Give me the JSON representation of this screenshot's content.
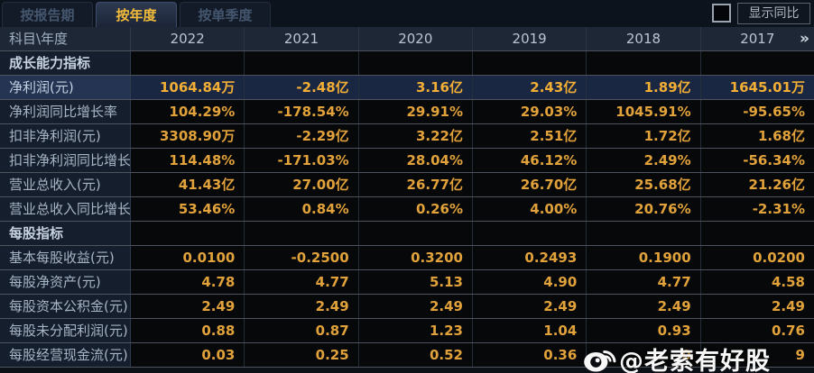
{
  "tabs": [
    {
      "label": "按报告期",
      "active": false
    },
    {
      "label": "按年度",
      "active": true
    },
    {
      "label": "按单季度",
      "active": false
    }
  ],
  "controls": {
    "show_yoy_label": "显示同比",
    "checkbox_checked": false
  },
  "table": {
    "corner_label": "科目\\年度",
    "years": [
      "2022",
      "2021",
      "2020",
      "2019",
      "2018",
      "2017"
    ],
    "more_icon": "»",
    "rows": [
      {
        "type": "section",
        "label": "成长能力指标",
        "values": [
          "",
          "",
          "",
          "",
          "",
          ""
        ]
      },
      {
        "type": "data",
        "highlight": true,
        "label": "净利润(元)",
        "values": [
          "1064.84万",
          "-2.48亿",
          "3.16亿",
          "2.43亿",
          "1.89亿",
          "1645.01万"
        ]
      },
      {
        "type": "data",
        "label": "净利润同比增长率",
        "values": [
          "104.29%",
          "-178.54%",
          "29.91%",
          "29.03%",
          "1045.91%",
          "-95.65%"
        ]
      },
      {
        "type": "data",
        "label": "扣非净利润(元)",
        "values": [
          "3308.90万",
          "-2.29亿",
          "3.22亿",
          "2.51亿",
          "1.72亿",
          "1.68亿"
        ]
      },
      {
        "type": "data",
        "label": "扣非净利润同比增长率",
        "values": [
          "114.48%",
          "-171.03%",
          "28.04%",
          "46.12%",
          "2.49%",
          "-56.34%"
        ]
      },
      {
        "type": "data",
        "label": "营业总收入(元)",
        "values": [
          "41.43亿",
          "27.00亿",
          "26.77亿",
          "26.70亿",
          "25.68亿",
          "21.26亿"
        ]
      },
      {
        "type": "data",
        "label": "营业总收入同比增长率",
        "values": [
          "53.46%",
          "0.84%",
          "0.26%",
          "4.00%",
          "20.76%",
          "-2.31%"
        ]
      },
      {
        "type": "section",
        "label": "每股指标",
        "values": [
          "",
          "",
          "",
          "",
          "",
          ""
        ]
      },
      {
        "type": "data",
        "label": "基本每股收益(元)",
        "values": [
          "0.0100",
          "-0.2500",
          "0.3200",
          "0.2493",
          "0.1900",
          "0.0200"
        ]
      },
      {
        "type": "data",
        "label": "每股净资产(元)",
        "values": [
          "4.78",
          "4.77",
          "5.13",
          "4.90",
          "4.77",
          "4.58"
        ]
      },
      {
        "type": "data",
        "label": "每股资本公积金(元)",
        "values": [
          "2.49",
          "2.49",
          "2.49",
          "2.49",
          "2.49",
          "2.49"
        ]
      },
      {
        "type": "data",
        "label": "每股未分配利润(元)",
        "values": [
          "0.88",
          "0.87",
          "1.23",
          "1.04",
          "0.93",
          "0.76"
        ]
      },
      {
        "type": "data",
        "label": "每股经营现金流(元)",
        "values": [
          "0.03",
          "0.25",
          "0.52",
          "0.36",
          "0",
          "9"
        ]
      }
    ]
  },
  "watermark": {
    "text": "@老索有好股",
    "icon": "weibo-icon"
  },
  "colors": {
    "value_gold": "#e2a23b",
    "highlight_gold": "#f2ae35",
    "active_tab_text": "#f3bd3b",
    "highlight_row_bg": "#192743",
    "header_bg": "#1e2735",
    "label_col_bg": "#151e2c"
  }
}
